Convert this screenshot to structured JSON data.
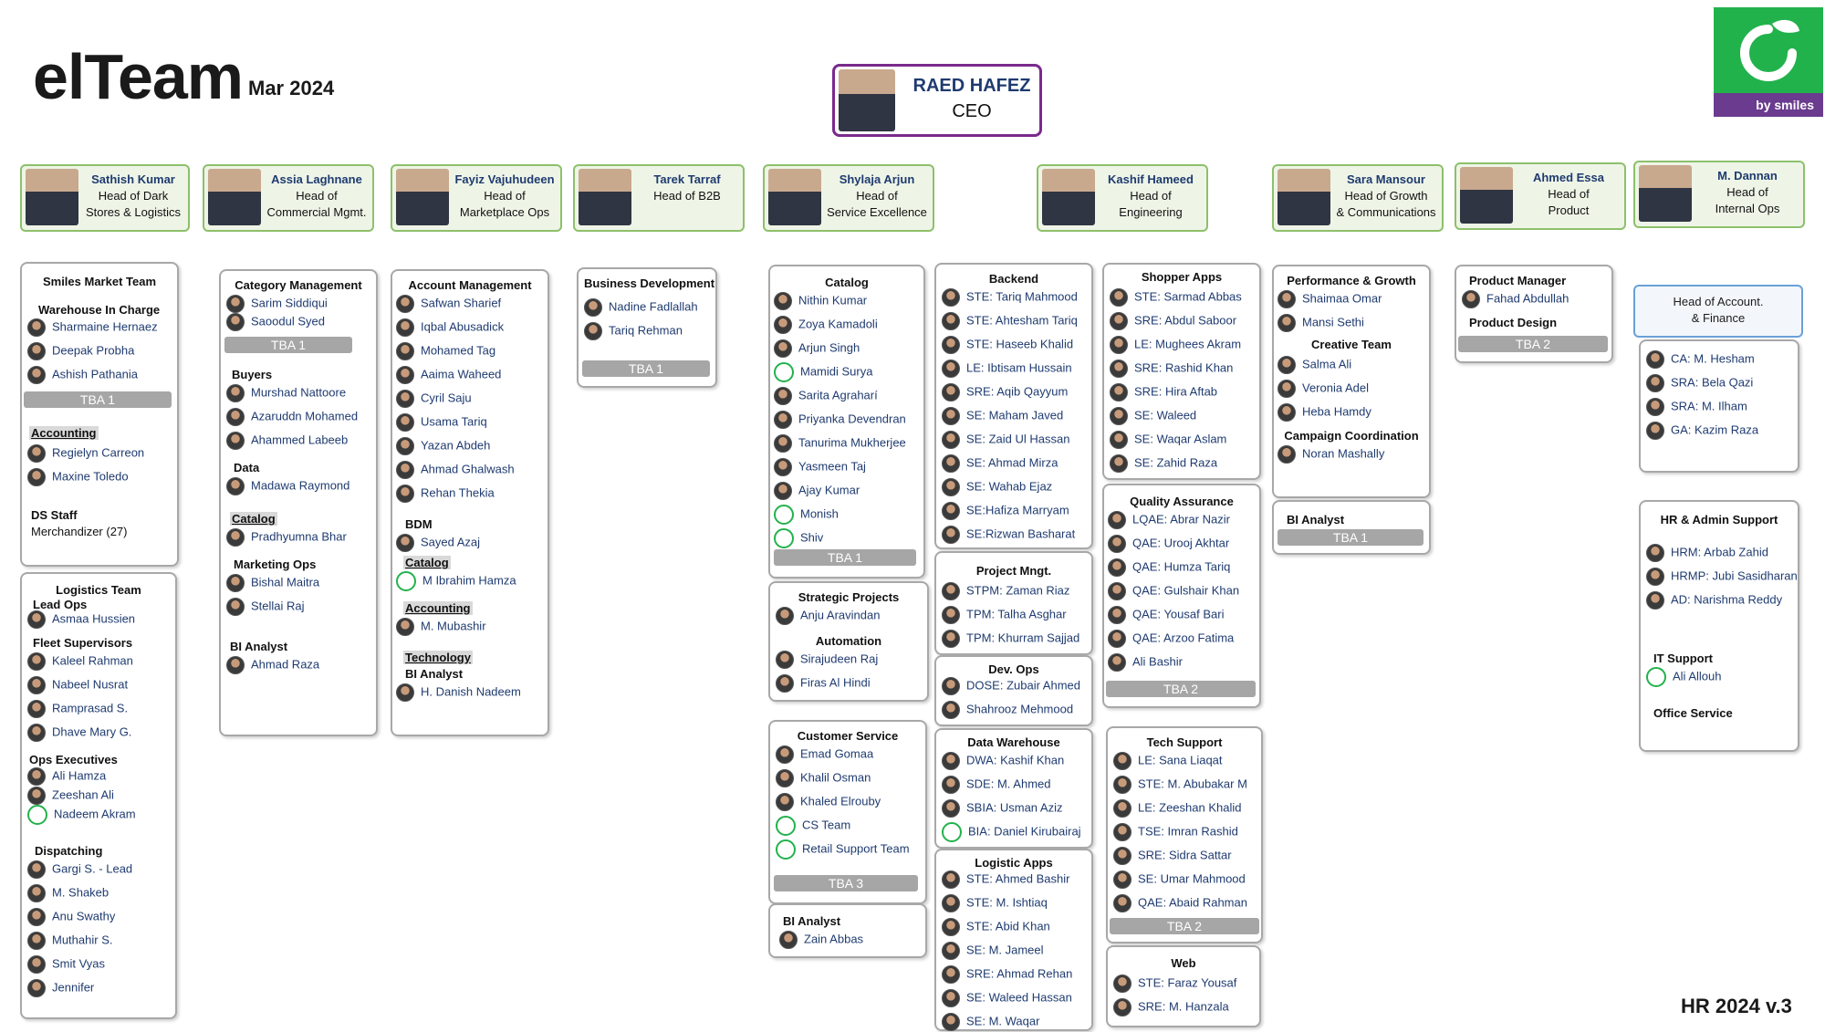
{
  "header": {
    "brand": "elTeam",
    "date": "Mar  2024",
    "version": "HR 2024 v.3",
    "logo_text": "by smiles",
    "accent": "#22b24c",
    "logo_band": "#6a3b8e"
  },
  "ceo": {
    "name": "RAED HAFEZ",
    "role": "CEO"
  },
  "heads": [
    {
      "name": "Sathish Kumar",
      "l1": "Head of Dark",
      "l2": "Stores & Logistics"
    },
    {
      "name": "Assia Laghnane",
      "l1": "Head of",
      "l2": "Commercial Mgmt."
    },
    {
      "name": "Fayiz Vajuhudeen",
      "l1": "Head of",
      "l2": "Marketplace Ops"
    },
    {
      "name": "Tarek Tarraf",
      "l1": "Head of B2B",
      "l2": ""
    },
    {
      "name": "Shylaja Arjun",
      "l1": "Head of",
      "l2": "Service Excellence"
    },
    {
      "name": "Kashif Hameed",
      "l1": "Head of",
      "l2": "Engineering"
    },
    {
      "name": "Sara Mansour",
      "l1": "Head of Growth",
      "l2": "& Communications"
    },
    {
      "name": "Ahmed Essa",
      "l1": "Head of",
      "l2": "Product"
    },
    {
      "name": "M. Dannan",
      "l1": "Head of",
      "l2": "Internal Ops"
    }
  ],
  "smiles_market": {
    "title": "Smiles Market Team",
    "sub": "Warehouse In Charge",
    "people": [
      "Sharmaine Hernaez",
      "Deepak Probha",
      "Ashish Pathania"
    ],
    "tba": "TBA 1",
    "acc": "Accounting",
    "acc_people": [
      "Regielyn Carreon",
      "Maxine Toledo"
    ],
    "ds": "DS Staff",
    "merch": "Merchandizer (27)"
  },
  "logistics": {
    "title": "Logistics Team",
    "lead_ops": "Lead Ops",
    "lead": [
      "Asmaa Hussien"
    ],
    "fleet": "Fleet Supervisors",
    "fleet_people": [
      "Kaleel Rahman",
      "Nabeel Nusrat",
      "Ramprasad S.",
      "Dhave Mary G."
    ],
    "ops": "Ops Executives",
    "ops_people": [
      "Ali Hamza",
      "Zeeshan Ali",
      "Nadeem Akram"
    ],
    "disp": "Dispatching",
    "disp_people": [
      "Gargi S. - Lead",
      "M. Shakeb",
      "Anu Swathy",
      "Muthahir S.",
      "Smit Vyas",
      "Jennifer"
    ]
  },
  "commercial": {
    "cat": "Category Management",
    "cat_people": [
      "Sarim Siddiqui",
      "Saoodul Syed"
    ],
    "tba": "TBA 1",
    "buyers": "Buyers",
    "buyers_people": [
      "Murshad Nattoore",
      "Azaruddn Mohamed",
      "Ahammed Labeeb"
    ],
    "data": "Data",
    "data_people": [
      "Madawa Raymond"
    ],
    "catalog": "Catalog",
    "catalog_people": [
      "Pradhyumna Bhar"
    ],
    "mkt": "Marketing Ops",
    "mkt_people": [
      "Bishal Maitra",
      "Stellai Raj"
    ],
    "bi": "BI Analyst",
    "bi_people": [
      "Ahmad Raza"
    ]
  },
  "marketplace": {
    "acct": "Account Management",
    "acct_people": [
      "Safwan Sharief",
      "Iqbal Abusadick",
      "Mohamed Tag",
      "Aaima Waheed",
      "Cyril Saju",
      "Usama Tariq",
      "Yazan Abdeh",
      "Ahmad Ghalwash",
      "Rehan Thekia"
    ],
    "bdm": "BDM",
    "bdm_people": [
      "Sayed Azaj"
    ],
    "catalog": "Catalog",
    "catalog_people": [
      "M Ibrahim Hamza"
    ],
    "acc": "Accounting",
    "acc_people": [
      "M. Mubashir"
    ],
    "tech": "Technology",
    "bi": "BI Analyst",
    "bi_people": [
      "H. Danish Nadeem"
    ]
  },
  "b2b": {
    "title": "Business Development",
    "people": [
      "Nadine Fadlallah",
      "Tariq Rehman"
    ],
    "tba": "TBA 1"
  },
  "catalog": {
    "title": "Catalog",
    "people": [
      "Nithin Kumar",
      "Zoya Kamadoli",
      "Arjun Singh",
      "Mamidi Surya",
      "Sarita Agraharí",
      "Priyanka Devendran",
      "Tanurima Mukherjee",
      "Yasmeen Taj",
      "Ajay Kumar",
      "Monish",
      "Shiv"
    ],
    "tba": "TBA 1"
  },
  "strategic": {
    "title": "Strategic Projects",
    "people": [
      "Anju Aravindan"
    ],
    "auto": "Automation",
    "auto_people": [
      "Sirajudeen Raj",
      "Firas Al Hindi"
    ]
  },
  "customer": {
    "title": "Customer Service",
    "people": [
      "Emad Gomaa",
      "Khalil Osman",
      "Khaled Elrouby",
      "CS Team",
      "Retail Support Team"
    ],
    "tba": "TBA 3"
  },
  "bi_service": {
    "title": "BI Analyst",
    "people": [
      "Zain Abbas"
    ]
  },
  "backend": {
    "title": "Backend",
    "people": [
      "STE: Tariq Mahmood",
      "STE: Ahtesham Tariq",
      "STE: Haseeb Khalid",
      "LE: Ibtisam Hussain",
      "SRE: Aqib Qayyum",
      "SE: Maham Javed",
      "SE: Zaid Ul Hassan",
      "SE: Ahmad Mirza",
      "SE: Wahab Ejaz",
      "SE:Hafiza Marryam",
      "SE:Rizwan Basharat"
    ]
  },
  "project": {
    "title": "Project Mngt.",
    "people": [
      "STPM: Zaman Riaz",
      "TPM: Talha Asghar",
      "TPM: Khurram Sajjad"
    ]
  },
  "devops": {
    "title": "Dev. Ops",
    "people": [
      "DOSE: Zubair Ahmed",
      "Shahrooz Mehmood"
    ]
  },
  "warehouse": {
    "title": "Data Warehouse",
    "people": [
      "DWA: Kashif Khan",
      "SDE: M. Ahmed",
      "SBIA: Usman Aziz",
      "BIA: Daniel Kirubairaj"
    ]
  },
  "logapps": {
    "title": "Logistic Apps",
    "people": [
      "STE: Ahmed Bashir",
      "STE: M. Ishtiaq",
      "STE: Abid Khan",
      "SE: M. Jameel",
      "SRE: Ahmad Rehan",
      "SE: Waleed Hassan",
      "SE: M. Waqar"
    ]
  },
  "shopper": {
    "title": "Shopper Apps",
    "people": [
      "STE: Sarmad Abbas",
      "SRE: Abdul Saboor",
      "LE: Mughees Akram",
      "SRE: Rashid Khan",
      "SRE: Hira Aftab",
      "SE: Waleed",
      "SE: Waqar Aslam",
      "SE: Zahid Raza"
    ]
  },
  "qa": {
    "title": "Quality Assurance",
    "people": [
      "LQAE: Abrar Nazir",
      "QAE: Urooj Akhtar",
      "QAE: Humza Tariq",
      "QAE: Gulshair Khan",
      "QAE: Yousaf Bari",
      "QAE: Arzoo Fatima",
      "Ali Bashir"
    ],
    "tba": "TBA 2"
  },
  "techsupport": {
    "title": "Tech Support",
    "people": [
      "LE: Sana Liaqat",
      "STE: M. Abubakar M",
      "LE: Zeeshan Khalid",
      "TSE: Imran Rashid",
      "SRE: Sidra Sattar",
      "SE: Umar Mahmood",
      "QAE: Abaid Rahman"
    ],
    "tba": "TBA 2"
  },
  "web": {
    "title": "Web",
    "people": [
      "STE: Faraz Yousaf",
      "SRE: M. Hanzala"
    ]
  },
  "growth": {
    "title": "Performance & Growth",
    "people": [
      "Shaimaa Omar",
      "Mansi Sethi"
    ],
    "creative": "Creative Team",
    "creative_people": [
      "Salma Ali",
      "Veronia Adel",
      "Heba Hamdy"
    ],
    "campaign": "Campaign Coordination",
    "campaign_people": [
      "Noran Mashally"
    ]
  },
  "bi_growth": {
    "title": "BI Analyst",
    "tba": "TBA 1"
  },
  "product": {
    "pm": "Product Manager",
    "pm_people": [
      "Fahad Abdullah"
    ],
    "pd": "Product Design",
    "tba": "TBA 2"
  },
  "acct_fin": {
    "title": "Head of Account.",
    "sub": "& Finance",
    "people": [
      "CA: M. Hesham",
      "SRA: Bela Qazi",
      "SRA: M. Ilham",
      "GA: Kazim Raza"
    ]
  },
  "hr": {
    "title": "HR & Admin Support",
    "people": [
      "HRM: Arbab Zahid",
      "HRMP: Jubi Sasidharan",
      "AD: Narishma Reddy"
    ],
    "it": "IT Support",
    "it_people": [
      "Ali Allouh"
    ],
    "office": "Office Service"
  }
}
